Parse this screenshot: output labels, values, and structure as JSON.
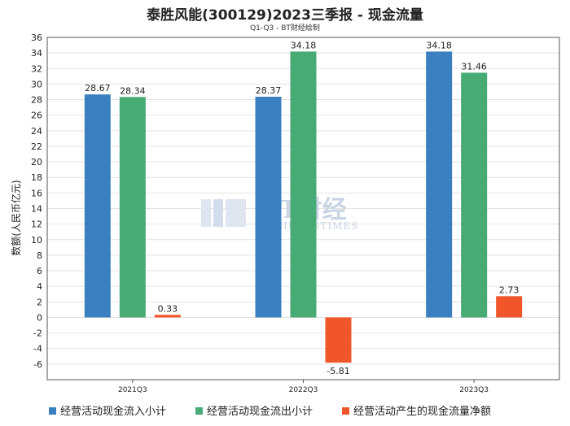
{
  "title": "泰胜风能(300129)2023三季报 - 现金流量",
  "subtitle": "Q1-Q3 - BT财经绘制",
  "watermark": {
    "main": "BT财经",
    "sub": "BUSINESSTIMES"
  },
  "chart_data": {
    "type": "bar",
    "categories": [
      "2021Q3",
      "2022Q3",
      "2023Q3"
    ],
    "ylabel": "数额(人民币亿元)",
    "ylim": [
      -8,
      36
    ],
    "yticks": [
      -6,
      -4,
      -2,
      0,
      2,
      4,
      6,
      8,
      10,
      12,
      14,
      16,
      18,
      20,
      22,
      24,
      26,
      28,
      30,
      32,
      34,
      36
    ],
    "grid": true,
    "legend_position": "bottom",
    "series": [
      {
        "name": "经营活动现金流入小计",
        "color": "#3a80c0",
        "values": [
          28.67,
          28.37,
          34.18
        ],
        "labels": [
          "28.67",
          "28.37",
          "34.18"
        ]
      },
      {
        "name": "经营活动现金流出小计",
        "color": "#48ab75",
        "values": [
          28.34,
          34.18,
          31.46
        ],
        "labels": [
          "28.34",
          "34.18",
          "31.46"
        ]
      },
      {
        "name": "经营活动产生的现金流量净额",
        "color": "#f0562a",
        "values": [
          0.33,
          -5.81,
          2.73
        ],
        "labels": [
          "0.33",
          "-5.81",
          "2.73"
        ]
      }
    ]
  }
}
